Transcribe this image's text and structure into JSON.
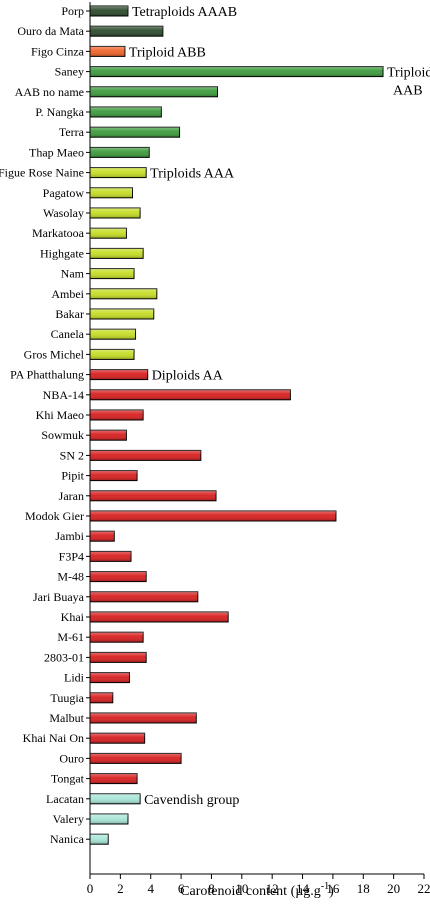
{
  "chart_data": {
    "type": "bar",
    "orientation": "horizontal",
    "categories": [
      "Porp",
      "Ouro da Mata",
      "Figo Cinza",
      "Saney",
      "AAB no name",
      "P. Nangka",
      "Terra",
      "Thap Maeo",
      "Figue Rose Naine",
      "Pagatow",
      "Wasolay",
      "Markatooa",
      "Highgate",
      "Nam",
      "Ambei",
      "Bakar",
      "Canela",
      "Gros Michel",
      "PA Phatthalung",
      "NBA-14",
      "Khi Maeo",
      "Sowmuk",
      "SN 2",
      "Pipit",
      "Jaran",
      "Modok Gier",
      "Jambi",
      "F3P4",
      "M-48",
      "Jari Buaya",
      "Khai",
      "M-61",
      "2803-01",
      "Lidi",
      "Tuugia",
      "Malbut",
      "Khai Nai On",
      "Ouro",
      "Tongat",
      "Lacatan",
      "Valery",
      "Nanica"
    ],
    "values": [
      2.5,
      4.8,
      2.3,
      19.3,
      8.4,
      4.7,
      5.9,
      3.9,
      3.7,
      2.8,
      3.3,
      2.4,
      3.5,
      2.9,
      4.4,
      4.2,
      3.0,
      2.9,
      3.8,
      13.2,
      3.5,
      2.4,
      7.3,
      3.1,
      8.3,
      16.2,
      1.6,
      2.7,
      3.7,
      7.1,
      9.1,
      3.5,
      3.7,
      2.6,
      1.5,
      7.0,
      3.6,
      6.0,
      3.1,
      3.3,
      2.5,
      1.2
    ],
    "group_colors": [
      "#2b4a2b",
      "#2b4a2b",
      "#f0632a",
      "#3c9a3c",
      "#3c9a3c",
      "#3c9a3c",
      "#3c9a3c",
      "#3c9a3c",
      "#c6dd24",
      "#c6dd24",
      "#c6dd24",
      "#c6dd24",
      "#c6dd24",
      "#c6dd24",
      "#c6dd24",
      "#c6dd24",
      "#c6dd24",
      "#c6dd24",
      "#d81e1e",
      "#d81e1e",
      "#d81e1e",
      "#d81e1e",
      "#d81e1e",
      "#d81e1e",
      "#d81e1e",
      "#d81e1e",
      "#d81e1e",
      "#d81e1e",
      "#d81e1e",
      "#d81e1e",
      "#d81e1e",
      "#d81e1e",
      "#d81e1e",
      "#d81e1e",
      "#d81e1e",
      "#d81e1e",
      "#d81e1e",
      "#d81e1e",
      "#d81e1e",
      "#a8e6d8",
      "#a8e6d8",
      "#a8e6d8"
    ],
    "group_labels": [
      {
        "text": "Tetraploids AAAB",
        "category_index": 0
      },
      {
        "text": "Triploid ABB",
        "category_index": 2
      },
      {
        "text": "Triploids",
        "text2": "AAB",
        "category_index": 3
      },
      {
        "text": "Triploids AAA",
        "category_index": 8
      },
      {
        "text": "Diploids AA",
        "category_index": 18
      },
      {
        "text": "Cavendish group",
        "category_index": 39
      }
    ],
    "xlabel": "Carotenoid content (µg.g",
    "xlabel_sup": "-1",
    "xlabel_end": ")",
    "xlim": [
      0,
      22
    ],
    "xticks": [
      0,
      2,
      4,
      6,
      8,
      10,
      12,
      14,
      16,
      18,
      20,
      22
    ],
    "grid": false,
    "legend": "none"
  }
}
